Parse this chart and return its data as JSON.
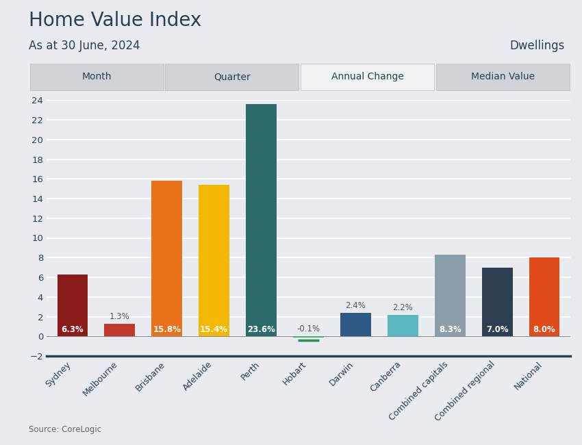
{
  "title": "Home Value Index",
  "subtitle": "As at 30 June, 2024",
  "right_label": "Dwellings",
  "source": "Source: CoreLogic",
  "tab_labels": [
    "Month",
    "Quarter",
    "Annual Change",
    "Median Value"
  ],
  "active_tab": 2,
  "categories": [
    "Sydney",
    "Melbourne",
    "Brisbane",
    "Adelaide",
    "Perth",
    "Hobart",
    "Darwin",
    "Canberra",
    "Combined capitals",
    "Combined regional",
    "National"
  ],
  "values": [
    6.3,
    1.3,
    15.8,
    15.4,
    23.6,
    -0.1,
    2.4,
    2.2,
    8.3,
    7.0,
    8.0
  ],
  "labels": [
    "6.3%",
    "1.3%",
    "15.8%",
    "15.4%",
    "23.6%",
    "-0.1%",
    "2.4%",
    "2.2%",
    "8.3%",
    "7.0%",
    "8.0%"
  ],
  "bar_colors": [
    "#8B1A1A",
    "#C0392B",
    "#E8711A",
    "#F5B800",
    "#2D6A6A",
    "#3CB371",
    "#2E5984",
    "#5BB8C1",
    "#8C9EA8",
    "#2C3E50",
    "#E04B1A"
  ],
  "hobart_line_color": "#2E8B57",
  "ylim": [
    -2,
    24
  ],
  "yticks": [
    -2,
    0,
    2,
    4,
    6,
    8,
    10,
    12,
    14,
    16,
    18,
    20,
    22,
    24
  ],
  "bg_color": "#E8EBF0",
  "tab_bg": "#D0D3D8",
  "active_tab_bg": "#F0F2F5",
  "grid_color": "#FFFFFF",
  "title_color": "#2C3E50",
  "bar_label_fontsize": 8.5
}
